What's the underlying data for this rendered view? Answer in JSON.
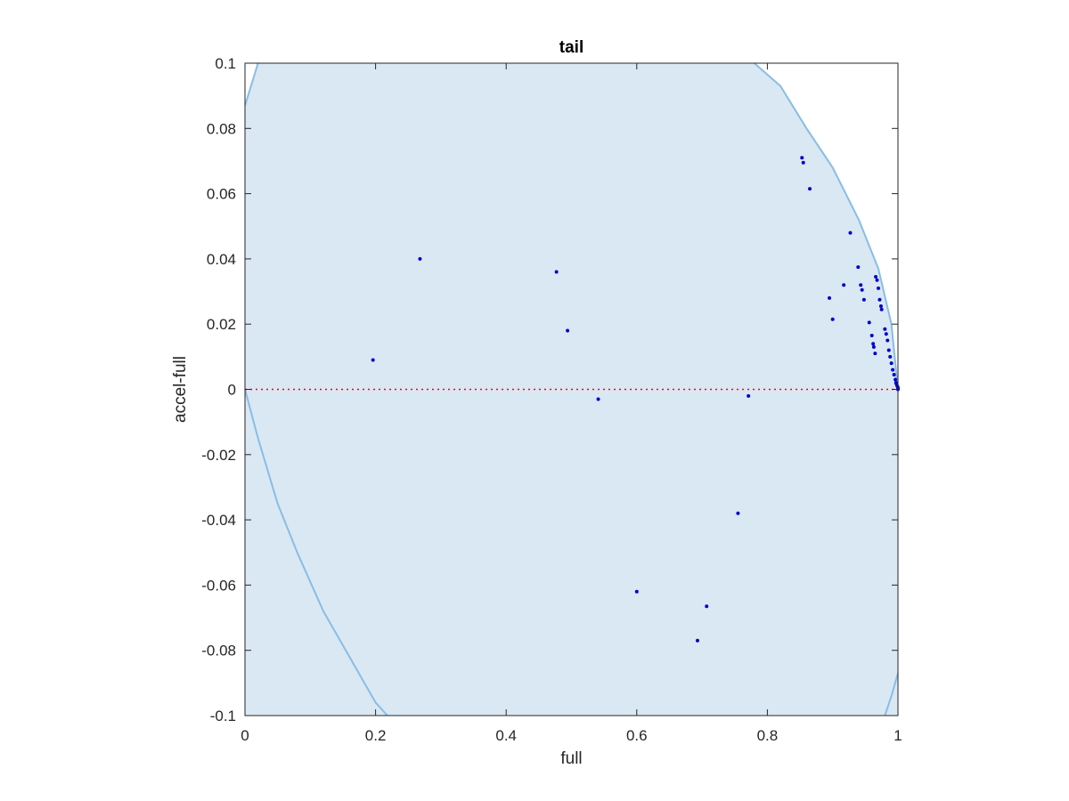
{
  "chart_data": {
    "type": "scatter",
    "title": "tail",
    "xlabel": "full",
    "ylabel": "accel-full",
    "xlim": [
      0,
      1
    ],
    "ylim": [
      -0.1,
      0.1
    ],
    "grid": false,
    "box": true,
    "xticks": [
      0,
      0.2,
      0.4,
      0.6,
      0.8,
      1
    ],
    "xtick_labels": [
      "0",
      "0.2",
      "0.4",
      "0.6",
      "0.8",
      "1"
    ],
    "yticks": [
      -0.1,
      -0.08,
      -0.06,
      -0.04,
      -0.02,
      0,
      0.02,
      0.04,
      0.06,
      0.08,
      0.1
    ],
    "ytick_labels": [
      "-0.1",
      "-0.08",
      "-0.06",
      "-0.04",
      "-0.02",
      "0",
      "0.02",
      "0.04",
      "0.06",
      "0.08",
      "0.1"
    ],
    "region": {
      "fill_color": "#dae8f4",
      "edge_color": "#88bde4",
      "upper_boundary": [
        [
          0.0,
          0.087
        ],
        [
          0.02,
          0.1
        ]
      ],
      "right_boundary": [
        [
          0.78,
          0.1
        ],
        [
          0.82,
          0.093
        ],
        [
          0.86,
          0.08
        ],
        [
          0.9,
          0.068
        ],
        [
          0.94,
          0.052
        ],
        [
          0.97,
          0.037
        ],
        [
          0.99,
          0.02
        ],
        [
          1.0,
          0.0
        ]
      ],
      "lower_boundary": [
        [
          0.0,
          0.0
        ],
        [
          0.02,
          -0.015
        ],
        [
          0.05,
          -0.035
        ],
        [
          0.08,
          -0.05
        ],
        [
          0.12,
          -0.068
        ],
        [
          0.16,
          -0.082
        ],
        [
          0.2,
          -0.096
        ],
        [
          0.218,
          -0.1
        ]
      ],
      "lower_right_boundary": [
        [
          0.98,
          -0.1
        ],
        [
          0.99,
          -0.094
        ],
        [
          1.0,
          -0.087
        ]
      ]
    },
    "reference_line": {
      "y": 0,
      "color": "#ff0000",
      "style": "dotted"
    },
    "series": [
      {
        "color": "#0000cc",
        "points": [
          [
            0.196,
            0.009
          ],
          [
            0.268,
            0.04
          ],
          [
            0.477,
            0.036
          ],
          [
            0.494,
            0.018
          ],
          [
            0.541,
            -0.003
          ],
          [
            0.6,
            -0.062
          ],
          [
            0.693,
            -0.077
          ],
          [
            0.707,
            -0.0665
          ],
          [
            0.755,
            -0.038
          ],
          [
            0.771,
            -0.002
          ],
          [
            0.853,
            0.071
          ],
          [
            0.855,
            0.0695
          ],
          [
            0.865,
            0.0615
          ],
          [
            0.927,
            0.048
          ],
          [
            0.895,
            0.028
          ],
          [
            0.9,
            0.0215
          ],
          [
            0.917,
            0.032
          ],
          [
            0.939,
            0.0375
          ],
          [
            0.943,
            0.032
          ],
          [
            0.945,
            0.0305
          ],
          [
            0.948,
            0.0275
          ],
          [
            0.956,
            0.0205
          ],
          [
            0.96,
            0.0165
          ],
          [
            0.962,
            0.014
          ],
          [
            0.963,
            0.013
          ],
          [
            0.965,
            0.011
          ],
          [
            0.966,
            0.0345
          ],
          [
            0.968,
            0.0335
          ],
          [
            0.97,
            0.031
          ],
          [
            0.972,
            0.0275
          ],
          [
            0.974,
            0.0255
          ],
          [
            0.975,
            0.0245
          ],
          [
            0.98,
            0.0185
          ],
          [
            0.982,
            0.017
          ],
          [
            0.984,
            0.015
          ],
          [
            0.986,
            0.012
          ],
          [
            0.988,
            0.01
          ],
          [
            0.99,
            0.008
          ],
          [
            0.992,
            0.006
          ],
          [
            0.994,
            0.0045
          ],
          [
            0.996,
            0.003
          ],
          [
            0.997,
            0.002
          ],
          [
            0.998,
            0.0015
          ],
          [
            0.999,
            0.001
          ],
          [
            1.0,
            0.0005
          ],
          [
            1.0,
            0.0
          ]
        ]
      }
    ]
  }
}
